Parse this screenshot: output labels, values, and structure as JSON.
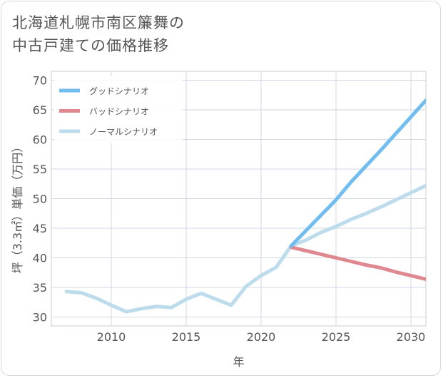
{
  "title_lines": [
    "北海道札幌市南区簾舞の",
    "中古戸建ての価格推移"
  ],
  "chart_data": {
    "type": "line",
    "xlabel": "年",
    "ylabel": "坪（3.3㎡）単価（万円）",
    "xlim": [
      2006,
      2031
    ],
    "ylim": [
      28.5,
      71.5
    ],
    "xticks": [
      2010,
      2015,
      2020,
      2025,
      2030
    ],
    "yticks": [
      30,
      35,
      40,
      45,
      50,
      55,
      60,
      65,
      70
    ],
    "grid": true,
    "legend_position": "top-left",
    "series": [
      {
        "name": "グッドシナリオ",
        "color": "#72bdf0",
        "x": [
          2022,
          2023,
          2024,
          2025,
          2026,
          2027,
          2028,
          2029,
          2030,
          2031
        ],
        "y": [
          42.0,
          44.6,
          47.2,
          49.8,
          52.8,
          55.5,
          58.2,
          61.0,
          63.8,
          66.6
        ]
      },
      {
        "name": "バッドシナリオ",
        "color": "#e08890",
        "x": [
          2022,
          2023,
          2024,
          2025,
          2026,
          2027,
          2028,
          2029,
          2030,
          2031
        ],
        "y": [
          41.8,
          41.2,
          40.6,
          40.0,
          39.4,
          38.8,
          38.3,
          37.6,
          37.0,
          36.4
        ]
      },
      {
        "name": "ノーマルシナリオ",
        "color": "#bcdcec",
        "x": [
          2007,
          2008,
          2009,
          2010,
          2011,
          2012,
          2013,
          2014,
          2015,
          2016,
          2017,
          2018,
          2019,
          2020,
          2021,
          2022,
          2023,
          2024,
          2025,
          2026,
          2027,
          2028,
          2029,
          2030,
          2031
        ],
        "y": [
          34.3,
          34.1,
          33.2,
          32.0,
          30.9,
          31.4,
          31.8,
          31.6,
          33.0,
          34.0,
          33.0,
          32.0,
          35.2,
          37.0,
          38.4,
          42.0,
          43.0,
          44.3,
          45.3,
          46.5,
          47.5,
          48.6,
          49.8,
          51.0,
          52.2
        ]
      }
    ]
  }
}
